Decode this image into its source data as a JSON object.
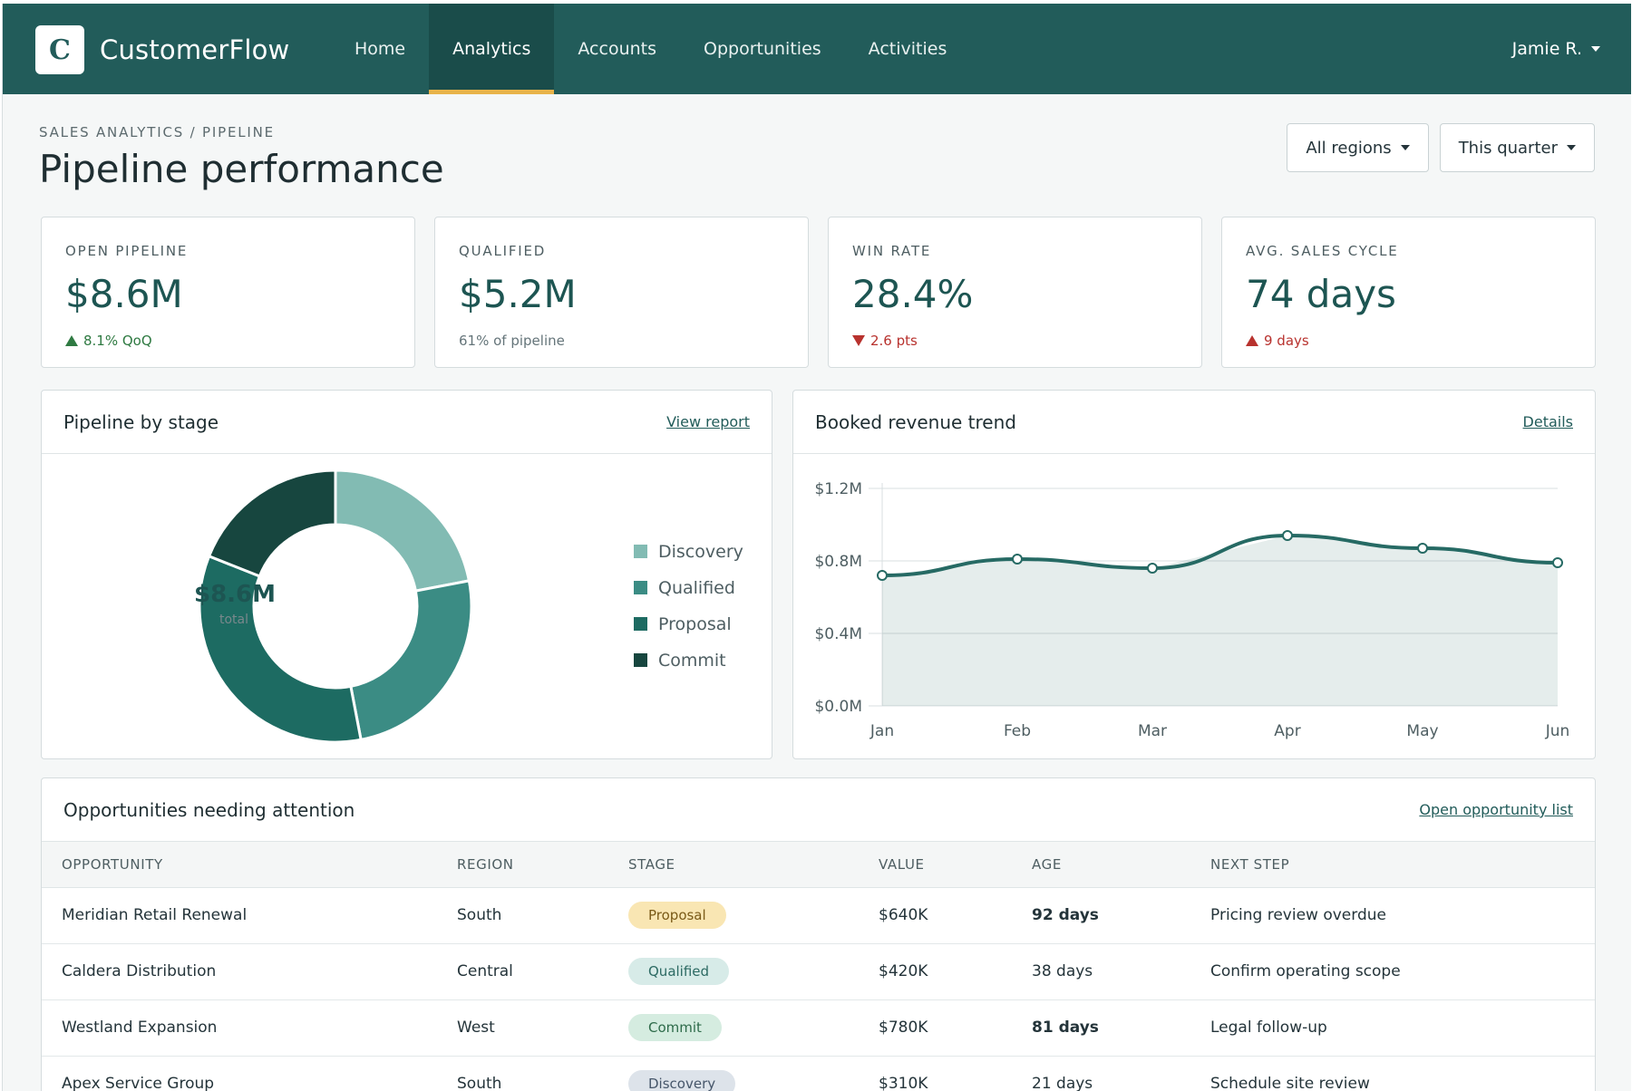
{
  "app": {
    "logo_letter": "C",
    "name": "CustomerFlow"
  },
  "nav": [
    {
      "label": "Home",
      "active": false
    },
    {
      "label": "Analytics",
      "active": true
    },
    {
      "label": "Accounts",
      "active": false
    },
    {
      "label": "Opportunities",
      "active": false
    },
    {
      "label": "Activities",
      "active": false
    }
  ],
  "user": {
    "name": "Jamie R."
  },
  "header": {
    "breadcrumb": "SALES ANALYTICS / PIPELINE",
    "title": "Pipeline performance"
  },
  "filters": {
    "region": "All regions",
    "period": "This quarter"
  },
  "kpis": [
    {
      "label": "OPEN PIPELINE",
      "value": "$8.6M",
      "sub": "8.1% QoQ",
      "trend": "up",
      "tone": "up"
    },
    {
      "label": "QUALIFIED",
      "value": "$5.2M",
      "sub": "61% of pipeline",
      "trend": "none",
      "tone": "neutral"
    },
    {
      "label": "WIN RATE",
      "value": "28.4%",
      "sub": "2.6 pts",
      "trend": "down",
      "tone": "down"
    },
    {
      "label": "AVG. SALES CYCLE",
      "value": "74 days",
      "sub": "9 days",
      "trend": "up",
      "tone": "down"
    }
  ],
  "stage_panel": {
    "title": "Pipeline by stage",
    "link": "View report",
    "center_value": "$8.6M",
    "center_label": "total"
  },
  "trend_panel": {
    "title": "Booked revenue trend",
    "link": "Details"
  },
  "chart_data": [
    {
      "type": "pie",
      "variant": "donut",
      "categories": [
        "Discovery",
        "Qualified",
        "Proposal",
        "Commit"
      ],
      "values": [
        22,
        25,
        34,
        19
      ],
      "colors": [
        "#82bbb3",
        "#3b8c84",
        "#1d6b62",
        "#17463f"
      ]
    },
    {
      "type": "area",
      "x": [
        "Jan",
        "Feb",
        "Mar",
        "Apr",
        "May",
        "Jun"
      ],
      "values": [
        0.72,
        0.81,
        0.76,
        0.94,
        0.87,
        0.79
      ],
      "yticks": [
        "$0.0M",
        "$0.4M",
        "$0.8M",
        "$1.2M"
      ],
      "ylim": [
        0,
        1.2
      ],
      "grid": true,
      "color": "#266a64"
    }
  ],
  "table_panel": {
    "title": "Opportunities needing attention",
    "link": "Open opportunity list"
  },
  "table": {
    "headers": [
      "OPPORTUNITY",
      "REGION",
      "STAGE",
      "VALUE",
      "AGE",
      "NEXT STEP"
    ],
    "rows": [
      {
        "opportunity": "Meridian Retail Renewal",
        "region": "South",
        "stage": "Proposal",
        "value": "$640K",
        "age": "92 days",
        "age_alert": true,
        "next": "Pricing review overdue"
      },
      {
        "opportunity": "Caldera Distribution",
        "region": "Central",
        "stage": "Qualified",
        "value": "$420K",
        "age": "38 days",
        "age_alert": false,
        "next": "Confirm operating scope"
      },
      {
        "opportunity": "Westland Expansion",
        "region": "West",
        "stage": "Commit",
        "value": "$780K",
        "age": "81 days",
        "age_alert": true,
        "next": "Legal follow-up"
      },
      {
        "opportunity": "Apex Service Group",
        "region": "South",
        "stage": "Discovery",
        "value": "$310K",
        "age": "21 days",
        "age_alert": false,
        "next": "Schedule site review"
      }
    ]
  },
  "stage_colors": {
    "Proposal": {
      "bg": "#f9e6b3",
      "fg": "#7a5a17"
    },
    "Qualified": {
      "bg": "#d7ebe8",
      "fg": "#2c6a63"
    },
    "Commit": {
      "bg": "#d5ece0",
      "fg": "#2e6b4a"
    },
    "Discovery": {
      "bg": "#dde3ea",
      "fg": "#46566a"
    }
  }
}
